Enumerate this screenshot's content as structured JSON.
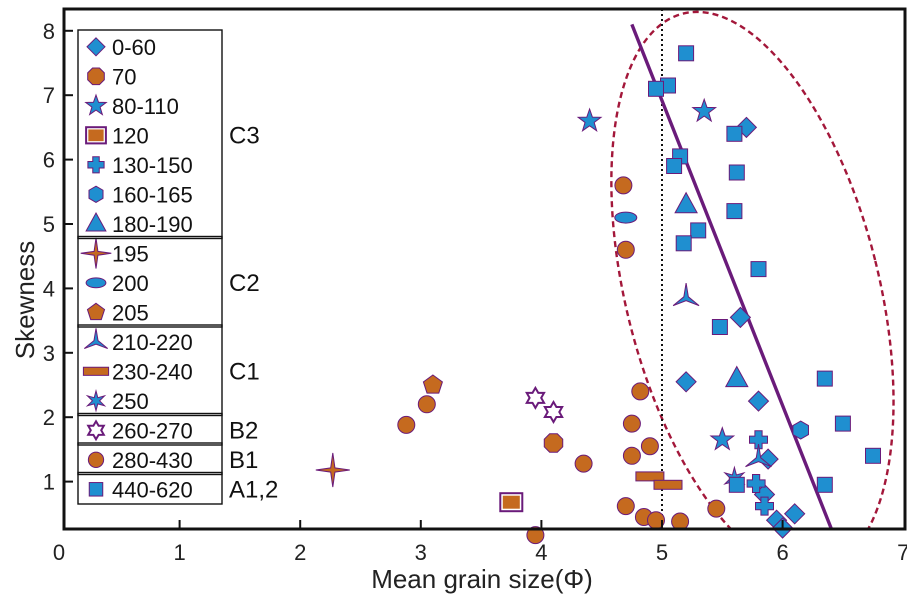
{
  "chart_data": {
    "type": "scatter",
    "title": "",
    "xlabel": "Mean grain size(Φ)",
    "ylabel": "Skewness",
    "xlim": [
      0,
      7
    ],
    "ylim": [
      0,
      8.4
    ],
    "xticks": [
      "0",
      "1",
      "2",
      "3",
      "4",
      "5",
      "6",
      "7"
    ],
    "yticks": [
      "1",
      "2",
      "3",
      "4",
      "5",
      "6",
      "7",
      "8"
    ],
    "colors": {
      "blue": "#1f8fd0",
      "orange": "#c56a1f",
      "purple": "#6a1b7a",
      "ellipse": "#a3173a"
    },
    "reference_line_x": 5,
    "trend_line": {
      "x": [
        4.75,
        6.45
      ],
      "y": [
        8.1,
        0.05
      ]
    },
    "ellipse": {
      "cx": 5.75,
      "cy": 3.95,
      "rx": 1.05,
      "ry": 4.45,
      "angle_deg": -14
    },
    "legend": [
      {
        "label": "0-60",
        "marker": "diamond",
        "color": "#1f8fd0"
      },
      {
        "label": "70",
        "marker": "octagon",
        "color": "#c56a1f"
      },
      {
        "label": "80-110",
        "marker": "star5",
        "color": "#1f8fd0"
      },
      {
        "label": "120",
        "marker": "square-framed",
        "color": "#c56a1f"
      },
      {
        "label": "130-150",
        "marker": "cross",
        "color": "#1f8fd0"
      },
      {
        "label": "160-165",
        "marker": "hexagon",
        "color": "#1f8fd0"
      },
      {
        "label": "180-190",
        "marker": "triangle",
        "color": "#1f8fd0"
      },
      {
        "label": "195",
        "marker": "star4",
        "color": "#c56a1f"
      },
      {
        "label": "200",
        "marker": "ellipse",
        "color": "#1f8fd0"
      },
      {
        "label": "205",
        "marker": "pentagon",
        "color": "#c56a1f"
      },
      {
        "label": "210-220",
        "marker": "tri-star",
        "color": "#1f8fd0"
      },
      {
        "label": "230-240",
        "marker": "rect",
        "color": "#c56a1f"
      },
      {
        "label": "250",
        "marker": "star6",
        "color": "#1f8fd0"
      },
      {
        "label": "260-270",
        "marker": "hexagram",
        "color": "#ffffff"
      },
      {
        "label": "280-430",
        "marker": "circle",
        "color": "#c56a1f"
      },
      {
        "label": "440-620",
        "marker": "square",
        "color": "#1f8fd0"
      }
    ],
    "groups": [
      {
        "label": "C3",
        "from": 0,
        "to": 6
      },
      {
        "label": "C2",
        "from": 7,
        "to": 9
      },
      {
        "label": "C1",
        "from": 10,
        "to": 12
      },
      {
        "label": "B2",
        "from": 13,
        "to": 13
      },
      {
        "label": "B1",
        "from": 14,
        "to": 14
      },
      {
        "label": "A1,2",
        "from": 15,
        "to": 15
      }
    ],
    "series": [
      {
        "name": "0-60",
        "marker": "diamond",
        "color": "#1f8fd0",
        "points": [
          [
            5.7,
            6.5
          ],
          [
            5.65,
            3.55
          ],
          [
            5.2,
            2.55
          ],
          [
            5.8,
            2.25
          ],
          [
            5.88,
            1.35
          ],
          [
            5.85,
            0.8
          ],
          [
            6.1,
            0.5
          ],
          [
            5.95,
            0.4
          ],
          [
            6.0,
            0.28
          ]
        ]
      },
      {
        "name": "70",
        "marker": "octagon",
        "color": "#c56a1f",
        "points": [
          [
            4.1,
            1.6
          ]
        ]
      },
      {
        "name": "80-110",
        "marker": "star5",
        "color": "#1f8fd0",
        "points": [
          [
            4.4,
            6.6
          ],
          [
            5.35,
            6.75
          ],
          [
            5.5,
            1.65
          ]
        ]
      },
      {
        "name": "120",
        "marker": "square-framed",
        "color": "#c56a1f",
        "points": [
          [
            3.75,
            0.68
          ]
        ]
      },
      {
        "name": "130-150",
        "marker": "cross",
        "color": "#1f8fd0",
        "points": [
          [
            5.8,
            1.65
          ],
          [
            5.78,
            0.97
          ],
          [
            5.85,
            0.62
          ]
        ]
      },
      {
        "name": "160-165",
        "marker": "hexagon",
        "color": "#1f8fd0",
        "points": [
          [
            6.15,
            1.8
          ]
        ]
      },
      {
        "name": "180-190",
        "marker": "triangle",
        "color": "#1f8fd0",
        "points": [
          [
            5.2,
            5.3
          ],
          [
            5.62,
            2.6
          ]
        ]
      },
      {
        "name": "195",
        "marker": "star4",
        "color": "#c56a1f",
        "points": [
          [
            2.27,
            1.18
          ]
        ]
      },
      {
        "name": "200",
        "marker": "ellipse",
        "color": "#1f8fd0",
        "points": [
          [
            4.7,
            5.1
          ]
        ]
      },
      {
        "name": "205",
        "marker": "pentagon",
        "color": "#c56a1f",
        "points": [
          [
            3.1,
            2.5
          ]
        ]
      },
      {
        "name": "210-220",
        "marker": "tri-star",
        "color": "#1f8fd0",
        "points": [
          [
            5.2,
            3.85
          ],
          [
            5.8,
            1.35
          ]
        ]
      },
      {
        "name": "230-240",
        "marker": "rect",
        "color": "#c56a1f",
        "points": [
          [
            4.9,
            1.08
          ],
          [
            5.05,
            0.95
          ]
        ]
      },
      {
        "name": "250",
        "marker": "star6",
        "color": "#1f8fd0",
        "points": [
          [
            5.6,
            1.05
          ]
        ]
      },
      {
        "name": "260-270",
        "marker": "hexagram",
        "color": "#ffffff",
        "points": [
          [
            3.95,
            2.3
          ],
          [
            4.1,
            2.08
          ]
        ]
      },
      {
        "name": "280-430",
        "marker": "circle",
        "color": "#c56a1f",
        "points": [
          [
            4.68,
            5.6
          ],
          [
            4.7,
            4.6
          ],
          [
            4.82,
            2.4
          ],
          [
            4.75,
            1.9
          ],
          [
            4.75,
            1.4
          ],
          [
            4.9,
            1.55
          ],
          [
            3.05,
            2.2
          ],
          [
            2.88,
            1.88
          ],
          [
            4.35,
            1.28
          ],
          [
            4.7,
            0.62
          ],
          [
            4.85,
            0.45
          ],
          [
            4.95,
            0.4
          ],
          [
            5.15,
            0.38
          ],
          [
            5.45,
            0.58
          ],
          [
            3.95,
            0.17
          ]
        ]
      },
      {
        "name": "440-620",
        "marker": "square",
        "color": "#1f8fd0",
        "points": [
          [
            5.2,
            7.65
          ],
          [
            5.05,
            7.15
          ],
          [
            4.95,
            7.1
          ],
          [
            5.6,
            6.4
          ],
          [
            5.15,
            6.05
          ],
          [
            5.1,
            5.9
          ],
          [
            5.62,
            5.8
          ],
          [
            5.6,
            5.2
          ],
          [
            5.3,
            4.9
          ],
          [
            5.18,
            4.7
          ],
          [
            5.8,
            4.3
          ],
          [
            5.48,
            3.4
          ],
          [
            6.35,
            2.6
          ],
          [
            6.5,
            1.9
          ],
          [
            6.75,
            1.4
          ],
          [
            5.62,
            0.95
          ],
          [
            6.35,
            0.95
          ]
        ]
      }
    ]
  }
}
